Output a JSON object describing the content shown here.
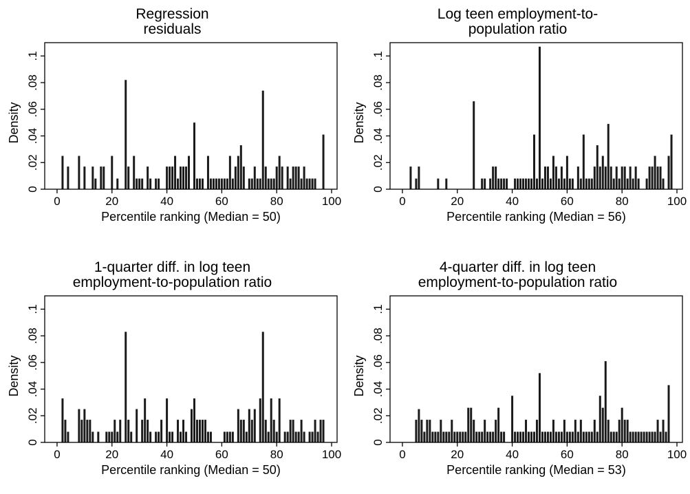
{
  "chart_data": [
    {
      "type": "bar",
      "title": [
        "Regression",
        "residuals"
      ],
      "xlabel": "Percentile ranking (Median = 50)",
      "ylabel": "Density",
      "xlim": [
        -4.5,
        102
      ],
      "ylim": [
        0,
        0.11
      ],
      "xticks": [
        0,
        20,
        40,
        60,
        80,
        100
      ],
      "yticks": [
        0,
        0.02,
        0.04,
        0.06,
        0.08,
        0.1
      ],
      "ytick_labels": [
        "0",
        ".02",
        ".04",
        ".06",
        ".08",
        ".1"
      ],
      "grid": false,
      "bar_width": 1,
      "bar_color": "#1a1a1a",
      "x": [
        2,
        4,
        8,
        10,
        13,
        14,
        16,
        17,
        20,
        22,
        25,
        26,
        28,
        29,
        30,
        31,
        33,
        34,
        36,
        37,
        40,
        41,
        42,
        43,
        44,
        45,
        46,
        47,
        48,
        50,
        51,
        52,
        53,
        55,
        56,
        57,
        58,
        59,
        60,
        61,
        62,
        63,
        64,
        65,
        66,
        67,
        68,
        70,
        71,
        72,
        73,
        74,
        75,
        76,
        77,
        78,
        79,
        80,
        81,
        82,
        84,
        85,
        86,
        87,
        88,
        89,
        90,
        91,
        92,
        93,
        94,
        97
      ],
      "y": [
        0.025,
        0.017,
        0.025,
        0.017,
        0.017,
        0.008,
        0.017,
        0.017,
        0.025,
        0.008,
        0.082,
        0.017,
        0.025,
        0.008,
        0.008,
        0.008,
        0.017,
        0.008,
        0.008,
        0.008,
        0.017,
        0.017,
        0.017,
        0.025,
        0.008,
        0.017,
        0.017,
        0.017,
        0.025,
        0.05,
        0.008,
        0.008,
        0.008,
        0.025,
        0.008,
        0.008,
        0.008,
        0.008,
        0.008,
        0.008,
        0.008,
        0.025,
        0.008,
        0.017,
        0.025,
        0.033,
        0.017,
        0.008,
        0.008,
        0.017,
        0.008,
        0.008,
        0.074,
        0.017,
        0.008,
        0.008,
        0.008,
        0.017,
        0.025,
        0.017,
        0.017,
        0.008,
        0.017,
        0.017,
        0.017,
        0.008,
        0.017,
        0.008,
        0.008,
        0.008,
        0.008,
        0.041
      ]
    },
    {
      "type": "bar",
      "title": [
        "Log teen employment-to-",
        "population ratio"
      ],
      "xlabel": "Percentile ranking (Median = 56)",
      "ylabel": "Density",
      "xlim": [
        -4.5,
        102
      ],
      "ylim": [
        0,
        0.11
      ],
      "xticks": [
        0,
        20,
        40,
        60,
        80,
        100
      ],
      "yticks": [
        0,
        0.02,
        0.04,
        0.06,
        0.08,
        0.1
      ],
      "ytick_labels": [
        "0",
        ".02",
        ".04",
        ".06",
        ".08",
        ".1"
      ],
      "grid": false,
      "bar_width": 1,
      "bar_color": "#1a1a1a",
      "x": [
        3,
        5,
        6,
        13,
        16,
        26,
        29,
        30,
        32,
        33,
        34,
        35,
        36,
        37,
        38,
        41,
        42,
        43,
        44,
        45,
        46,
        47,
        48,
        49,
        50,
        51,
        52,
        53,
        54,
        55,
        56,
        57,
        58,
        59,
        60,
        61,
        62,
        64,
        65,
        66,
        67,
        68,
        69,
        70,
        71,
        72,
        73,
        74,
        75,
        76,
        77,
        78,
        79,
        80,
        81,
        82,
        83,
        84,
        85,
        86,
        89,
        90,
        91,
        92,
        93,
        94,
        95,
        97,
        98
      ],
      "y": [
        0.017,
        0.008,
        0.017,
        0.008,
        0.008,
        0.066,
        0.008,
        0.008,
        0.008,
        0.017,
        0.017,
        0.008,
        0.008,
        0.008,
        0.008,
        0.008,
        0.008,
        0.008,
        0.008,
        0.008,
        0.008,
        0.008,
        0.041,
        0.008,
        0.107,
        0.008,
        0.017,
        0.017,
        0.008,
        0.025,
        0.017,
        0.008,
        0.017,
        0.008,
        0.025,
        0.008,
        0.008,
        0.017,
        0.008,
        0.041,
        0.008,
        0.008,
        0.008,
        0.017,
        0.033,
        0.017,
        0.025,
        0.017,
        0.049,
        0.017,
        0.008,
        0.017,
        0.008,
        0.017,
        0.017,
        0.008,
        0.017,
        0.008,
        0.017,
        0.008,
        0.008,
        0.017,
        0.017,
        0.025,
        0.017,
        0.017,
        0.008,
        0.025,
        0.041
      ]
    },
    {
      "type": "bar",
      "title": [
        "1-quarter diff. in log teen",
        "employment-to-population ratio"
      ],
      "xlabel": "Percentile ranking (Median = 50)",
      "ylabel": "Density",
      "xlim": [
        -4.5,
        102
      ],
      "ylim": [
        0,
        0.11
      ],
      "xticks": [
        0,
        20,
        40,
        60,
        80,
        100
      ],
      "yticks": [
        0,
        0.02,
        0.04,
        0.06,
        0.08,
        0.1
      ],
      "ytick_labels": [
        "0",
        ".02",
        ".04",
        ".06",
        ".08",
        ".1"
      ],
      "grid": false,
      "bar_width": 1,
      "bar_color": "#1a1a1a",
      "x": [
        2,
        3,
        4,
        8,
        9,
        10,
        11,
        12,
        13,
        15,
        18,
        19,
        20,
        21,
        22,
        23,
        25,
        26,
        27,
        29,
        31,
        32,
        33,
        34,
        36,
        37,
        38,
        40,
        41,
        42,
        44,
        45,
        46,
        47,
        49,
        50,
        51,
        52,
        53,
        54,
        55,
        56,
        61,
        62,
        63,
        64,
        66,
        67,
        68,
        69,
        70,
        71,
        72,
        74,
        75,
        76,
        77,
        78,
        79,
        80,
        81,
        83,
        84,
        85,
        86,
        87,
        88,
        89,
        90,
        92,
        93,
        94,
        95,
        96,
        97
      ],
      "y": [
        0.033,
        0.017,
        0.008,
        0.025,
        0.017,
        0.025,
        0.017,
        0.017,
        0.008,
        0.008,
        0.008,
        0.008,
        0.008,
        0.017,
        0.008,
        0.017,
        0.083,
        0.017,
        0.008,
        0.025,
        0.017,
        0.033,
        0.017,
        0.008,
        0.008,
        0.008,
        0.017,
        0.033,
        0.008,
        0.008,
        0.017,
        0.008,
        0.017,
        0.008,
        0.025,
        0.033,
        0.017,
        0.017,
        0.017,
        0.017,
        0.008,
        0.008,
        0.008,
        0.008,
        0.008,
        0.008,
        0.025,
        0.017,
        0.017,
        0.008,
        0.025,
        0.017,
        0.025,
        0.033,
        0.083,
        0.017,
        0.008,
        0.033,
        0.017,
        0.008,
        0.033,
        0.008,
        0.008,
        0.017,
        0.017,
        0.008,
        0.008,
        0.017,
        0.008,
        0.008,
        0.008,
        0.017,
        0.008,
        0.017,
        0.017
      ]
    },
    {
      "type": "bar",
      "title": [
        "4-quarter diff. in log teen",
        "employment-to-population ratio"
      ],
      "xlabel": "Percentile ranking (Median = 53)",
      "ylabel": "Density",
      "xlim": [
        -4.5,
        102
      ],
      "ylim": [
        0,
        0.11
      ],
      "xticks": [
        0,
        20,
        40,
        60,
        80,
        100
      ],
      "yticks": [
        0,
        0.02,
        0.04,
        0.06,
        0.08,
        0.1
      ],
      "ytick_labels": [
        "0",
        ".02",
        ".04",
        ".06",
        ".08",
        ".1"
      ],
      "grid": false,
      "bar_width": 1,
      "bar_color": "#1a1a1a",
      "x": [
        5,
        6,
        7,
        8,
        9,
        10,
        11,
        12,
        13,
        14,
        15,
        16,
        17,
        18,
        19,
        20,
        21,
        22,
        23,
        24,
        25,
        26,
        27,
        28,
        29,
        30,
        31,
        32,
        33,
        34,
        35,
        36,
        37,
        40,
        41,
        42,
        43,
        44,
        45,
        46,
        47,
        48,
        49,
        50,
        51,
        52,
        53,
        54,
        55,
        56,
        57,
        58,
        59,
        60,
        61,
        62,
        63,
        64,
        65,
        66,
        67,
        68,
        69,
        70,
        71,
        72,
        73,
        74,
        75,
        76,
        77,
        78,
        79,
        80,
        81,
        82,
        83,
        84,
        85,
        86,
        87,
        88,
        89,
        90,
        91,
        92,
        93,
        94,
        95,
        96,
        97
      ],
      "y": [
        0.017,
        0.025,
        0.017,
        0.008,
        0.017,
        0.017,
        0.008,
        0.008,
        0.008,
        0.017,
        0.008,
        0.008,
        0.008,
        0.017,
        0.008,
        0.008,
        0.008,
        0.008,
        0.008,
        0.026,
        0.026,
        0.017,
        0.008,
        0.008,
        0.008,
        0.017,
        0.008,
        0.008,
        0.008,
        0.017,
        0.026,
        0.008,
        0.008,
        0.035,
        0.008,
        0.008,
        0.008,
        0.008,
        0.017,
        0.008,
        0.008,
        0.008,
        0.017,
        0.052,
        0.008,
        0.008,
        0.008,
        0.008,
        0.017,
        0.008,
        0.008,
        0.008,
        0.017,
        0.008,
        0.008,
        0.008,
        0.017,
        0.008,
        0.017,
        0.008,
        0.008,
        0.008,
        0.008,
        0.017,
        0.008,
        0.035,
        0.026,
        0.061,
        0.017,
        0.008,
        0.008,
        0.008,
        0.017,
        0.026,
        0.017,
        0.017,
        0.008,
        0.008,
        0.008,
        0.008,
        0.008,
        0.008,
        0.008,
        0.008,
        0.008,
        0.008,
        0.017,
        0.008,
        0.017,
        0.008,
        0.043
      ]
    }
  ]
}
